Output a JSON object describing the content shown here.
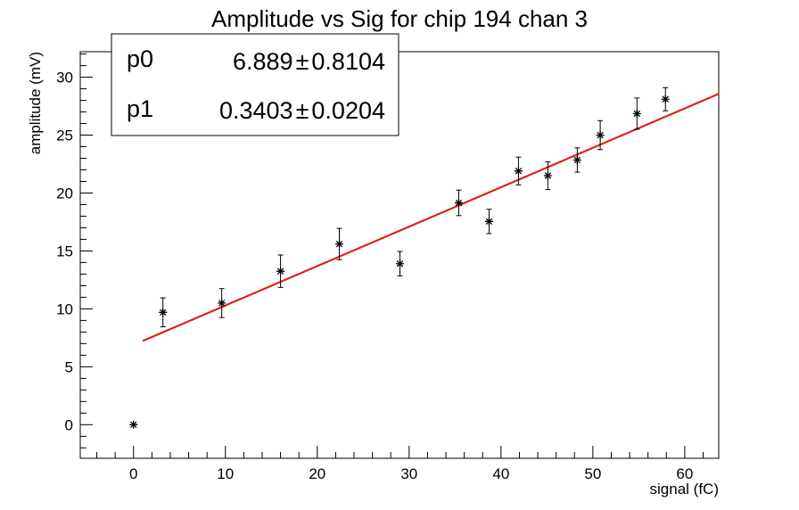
{
  "chart_data": {
    "type": "scatter",
    "title": "Amplitude vs Sig for chip 194 chan 3",
    "xlabel": "signal (fC)",
    "ylabel": "amplitude (mV)",
    "xlim": [
      -5.8,
      63.7
    ],
    "ylim": [
      -2.9,
      32.2
    ],
    "xticks": [
      0,
      10,
      20,
      30,
      40,
      50,
      60
    ],
    "yticks": [
      0,
      5,
      10,
      15,
      20,
      25,
      30
    ],
    "grid": false,
    "points": [
      {
        "x": 0.0,
        "y": 0.0,
        "err": 0.0
      },
      {
        "x": 3.2,
        "y": 9.7,
        "err": 1.25
      },
      {
        "x": 9.6,
        "y": 10.5,
        "err": 1.25
      },
      {
        "x": 16.0,
        "y": 13.25,
        "err": 1.4
      },
      {
        "x": 22.4,
        "y": 15.6,
        "err": 1.35
      },
      {
        "x": 29.0,
        "y": 13.9,
        "err": 1.05
      },
      {
        "x": 35.4,
        "y": 19.15,
        "err": 1.1
      },
      {
        "x": 38.7,
        "y": 17.55,
        "err": 1.05
      },
      {
        "x": 41.9,
        "y": 21.9,
        "err": 1.2
      },
      {
        "x": 45.1,
        "y": 21.5,
        "err": 1.2
      },
      {
        "x": 48.3,
        "y": 22.85,
        "err": 1.05
      },
      {
        "x": 50.8,
        "y": 25.0,
        "err": 1.25
      },
      {
        "x": 54.8,
        "y": 26.85,
        "err": 1.35
      },
      {
        "x": 57.9,
        "y": 28.1,
        "err": 1.0
      }
    ],
    "fit": {
      "x_range": [
        1.0,
        63.7
      ],
      "p0": 6.889,
      "p1": 0.3403,
      "color": "#e02020"
    },
    "stats_box": {
      "rows": [
        {
          "name": "p0",
          "value": "6.889",
          "error": "0.8104"
        },
        {
          "name": "p1",
          "value": "0.3403",
          "error": "0.0204"
        }
      ],
      "pm_symbol": "±",
      "placement": "top-left"
    }
  }
}
